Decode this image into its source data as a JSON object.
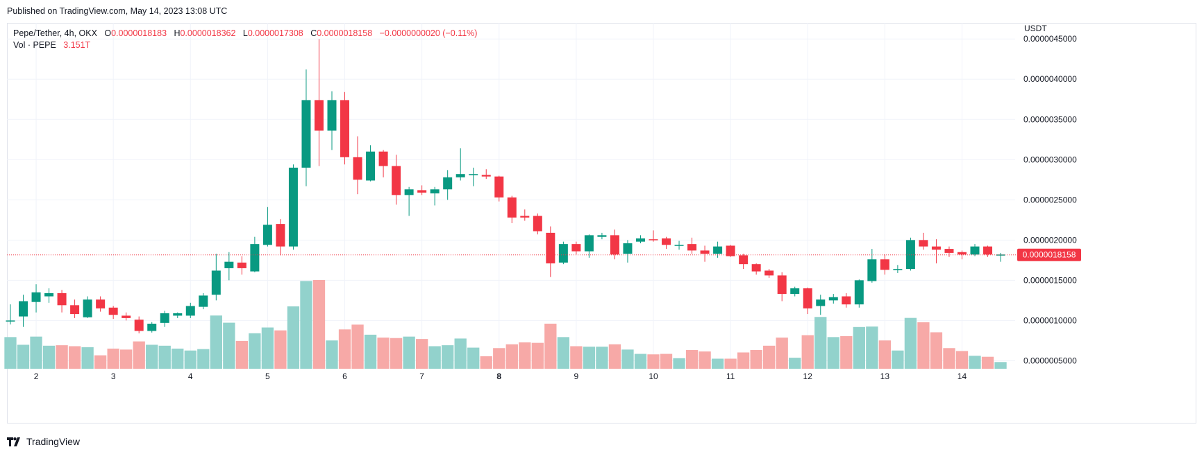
{
  "published": "Published on TradingView.com, May 14, 2023 13:08 UTC",
  "legend": {
    "symbol": "Pepe/Tether, 4h, OKX",
    "o_label": "O",
    "o_value": "0.0000018183",
    "h_label": "H",
    "h_value": "0.0000018362",
    "l_label": "L",
    "l_value": "0.0000017308",
    "c_label": "C",
    "c_value": "0.0000018158",
    "change": "−0.0000000020 (−0.11%)",
    "vol_label": "Vol · PEPE",
    "vol_value": "3.151T"
  },
  "brand": "TradingView",
  "colors": {
    "up": "#089981",
    "down": "#f23645",
    "vol_up": "#92d2cc",
    "vol_down": "#f7a9a7",
    "grid": "#f0f3fa",
    "price_tag": "#f23645"
  },
  "chart_data": {
    "type": "candlestick",
    "currency_label": "USDT",
    "y_ticks": [
      "0.0000045000",
      "0.0000040000",
      "0.0000035000",
      "0.0000030000",
      "0.0000025000",
      "0.0000020000",
      "0.0000015000",
      "0.0000010000",
      "0.0000005000"
    ],
    "y_tick_values": [
      4.5e-06,
      4e-06,
      3.5e-06,
      3e-06,
      2.5e-06,
      2e-06,
      1.5e-06,
      1e-06,
      5e-07
    ],
    "ylim": [
      4e-07,
      4.7e-06
    ],
    "x_labels": [
      {
        "label": "2",
        "index": 2
      },
      {
        "label": "3",
        "index": 8
      },
      {
        "label": "4",
        "index": 14
      },
      {
        "label": "5",
        "index": 20
      },
      {
        "label": "6",
        "index": 26
      },
      {
        "label": "7",
        "index": 32
      },
      {
        "label": "8",
        "index": 38,
        "bold": true
      },
      {
        "label": "9",
        "index": 44
      },
      {
        "label": "10",
        "index": 50
      },
      {
        "label": "11",
        "index": 56
      },
      {
        "label": "12",
        "index": 62
      },
      {
        "label": "13",
        "index": 68
      },
      {
        "label": "14",
        "index": 74
      }
    ],
    "last_price": 1.8158e-06,
    "last_price_label": "0.0000018158",
    "candles": [
      [
        1e-06,
        1.2e-06,
        9.5e-07,
        1e-06
      ],
      [
        1.05e-06,
        1.32e-06,
        9.2e-07,
        1.24e-06
      ],
      [
        1.23e-06,
        1.45e-06,
        1.1e-06,
        1.35e-06
      ],
      [
        1.3e-06,
        1.4e-06,
        1.22e-06,
        1.34e-06
      ],
      [
        1.34e-06,
        1.38e-06,
        1.1e-06,
        1.19e-06
      ],
      [
        1.19e-06,
        1.26e-06,
        1.03e-06,
        1.08e-06
      ],
      [
        1.04e-06,
        1.3e-06,
        1.03e-06,
        1.26e-06
      ],
      [
        1.26e-06,
        1.3e-06,
        1.11e-06,
        1.15e-06
      ],
      [
        1.16e-06,
        1.18e-06,
        1.02e-06,
        1.07e-06
      ],
      [
        1.06e-06,
        1.1e-06,
        1e-06,
        1.03e-06
      ],
      [
        1.01e-06,
        1.05e-06,
        8.4e-07,
        8.7e-07
      ],
      [
        8.7e-07,
        9.8e-07,
        8.5e-07,
        9.6e-07
      ],
      [
        9.7e-07,
        1.12e-06,
        9.2e-07,
        1.09e-06
      ],
      [
        1.06e-06,
        1.1e-06,
        1.03e-06,
        1.09e-06
      ],
      [
        1.06e-06,
        1.22e-06,
        1.03e-06,
        1.18e-06
      ],
      [
        1.17e-06,
        1.34e-06,
        1.14e-06,
        1.31e-06
      ],
      [
        1.32e-06,
        1.83e-06,
        1.25e-06,
        1.62e-06
      ],
      [
        1.65e-06,
        1.85e-06,
        1.5e-06,
        1.73e-06
      ],
      [
        1.72e-06,
        1.8e-06,
        1.57e-06,
        1.65e-06
      ],
      [
        1.61e-06,
        2.04e-06,
        1.6e-06,
        1.95e-06
      ],
      [
        1.94e-06,
        2.41e-06,
        1.92e-06,
        2.19e-06
      ],
      [
        2.2e-06,
        2.26e-06,
        1.81e-06,
        1.92e-06
      ],
      [
        1.92e-06,
        2.94e-06,
        1.88e-06,
        2.9e-06
      ],
      [
        2.9e-06,
        4.12e-06,
        2.67e-06,
        3.74e-06
      ],
      [
        3.74e-06,
        4.5e-06,
        2.92e-06,
        3.36e-06
      ],
      [
        3.36e-06,
        3.85e-06,
        3.12e-06,
        3.74e-06
      ],
      [
        3.74e-06,
        3.84e-06,
        2.94e-06,
        3.03e-06
      ],
      [
        3.03e-06,
        3.29e-06,
        2.57e-06,
        2.75e-06
      ],
      [
        2.74e-06,
        3.18e-06,
        2.73e-06,
        3.1e-06
      ],
      [
        3.1e-06,
        3.12e-06,
        2.78e-06,
        2.92e-06
      ],
      [
        2.92e-06,
        3.06e-06,
        2.44e-06,
        2.56e-06
      ],
      [
        2.56e-06,
        2.66e-06,
        2.3e-06,
        2.63e-06
      ],
      [
        2.62e-06,
        2.68e-06,
        2.56e-06,
        2.59e-06
      ],
      [
        2.58e-06,
        2.66e-06,
        2.43e-06,
        2.63e-06
      ],
      [
        2.63e-06,
        2.87e-06,
        2.5e-06,
        2.78e-06
      ],
      [
        2.78e-06,
        3.14e-06,
        2.74e-06,
        2.82e-06
      ],
      [
        2.81e-06,
        2.9e-06,
        2.67e-06,
        2.82e-06
      ],
      [
        2.81e-06,
        2.88e-06,
        2.76e-06,
        2.79e-06
      ],
      [
        2.79e-06,
        2.8e-06,
        2.48e-06,
        2.53e-06
      ],
      [
        2.53e-06,
        2.55e-06,
        2.21e-06,
        2.28e-06
      ],
      [
        2.3e-06,
        2.38e-06,
        2.24e-06,
        2.28e-06
      ],
      [
        2.3e-06,
        2.33e-06,
        2.07e-06,
        2.11e-06
      ],
      [
        2.09e-06,
        2.17e-06,
        1.54e-06,
        1.71e-06
      ],
      [
        1.72e-06,
        1.98e-06,
        1.7e-06,
        1.95e-06
      ],
      [
        1.95e-06,
        1.98e-06,
        1.82e-06,
        1.86e-06
      ],
      [
        1.86e-06,
        2.07e-06,
        1.78e-06,
        2.06e-06
      ],
      [
        2.04e-06,
        2.09e-06,
        2.01e-06,
        2.06e-06
      ],
      [
        2.06e-06,
        2.13e-06,
        1.76e-06,
        1.82e-06
      ],
      [
        1.83e-06,
        2e-06,
        1.72e-06,
        1.96e-06
      ],
      [
        1.98e-06,
        2.06e-06,
        1.96e-06,
        2.02e-06
      ],
      [
        2.01e-06,
        2.12e-06,
        1.98e-06,
        2e-06
      ],
      [
        2.02e-06,
        2.04e-06,
        1.89e-06,
        1.94e-06
      ],
      [
        1.93e-06,
        1.99e-06,
        1.88e-06,
        1.94e-06
      ],
      [
        1.95e-06,
        2.03e-06,
        1.83e-06,
        1.87e-06
      ],
      [
        1.87e-06,
        1.93e-06,
        1.73e-06,
        1.83e-06
      ],
      [
        1.83e-06,
        1.98e-06,
        1.78e-06,
        1.92e-06
      ],
      [
        1.93e-06,
        1.94e-06,
        1.79e-06,
        1.8e-06
      ],
      [
        1.81e-06,
        1.83e-06,
        1.64e-06,
        1.7e-06
      ],
      [
        1.7e-06,
        1.71e-06,
        1.57e-06,
        1.61e-06
      ],
      [
        1.62e-06,
        1.64e-06,
        1.53e-06,
        1.56e-06
      ],
      [
        1.56e-06,
        1.6e-06,
        1.24e-06,
        1.33e-06
      ],
      [
        1.33e-06,
        1.42e-06,
        1.3e-06,
        1.4e-06
      ],
      [
        1.4e-06,
        1.41e-06,
        1.08e-06,
        1.15e-06
      ],
      [
        1.18e-06,
        1.32e-06,
        1.07e-06,
        1.26e-06
      ],
      [
        1.25e-06,
        1.33e-06,
        1.21e-06,
        1.29e-06
      ],
      [
        1.3e-06,
        1.34e-06,
        1.16e-06,
        1.2e-06
      ],
      [
        1.2e-06,
        1.51e-06,
        1.16e-06,
        1.5e-06
      ],
      [
        1.49e-06,
        1.89e-06,
        1.47e-06,
        1.76e-06
      ],
      [
        1.76e-06,
        1.82e-06,
        1.57e-06,
        1.63e-06
      ],
      [
        1.64e-06,
        1.69e-06,
        1.59e-06,
        1.64e-06
      ],
      [
        1.64e-06,
        2.03e-06,
        1.62e-06,
        2e-06
      ],
      [
        2e-06,
        2.09e-06,
        1.88e-06,
        1.92e-06
      ],
      [
        1.92e-06,
        2.01e-06,
        1.71e-06,
        1.88e-06
      ],
      [
        1.89e-06,
        1.92e-06,
        1.79e-06,
        1.84e-06
      ],
      [
        1.85e-06,
        1.87e-06,
        1.76e-06,
        1.82e-06
      ],
      [
        1.82e-06,
        1.95e-06,
        1.8e-06,
        1.92e-06
      ],
      [
        1.92e-06,
        1.93e-06,
        1.79e-06,
        1.82e-06
      ],
      [
        1.82e-06,
        1.84e-06,
        1.73e-06,
        1.82e-06
      ]
    ],
    "volume": [
      66,
      50,
      67,
      48,
      49,
      47,
      45,
      28,
      42,
      40,
      57,
      50,
      48,
      42,
      38,
      41,
      111,
      96,
      58,
      74,
      86,
      80,
      130,
      183,
      185,
      59,
      82,
      92,
      71,
      65,
      64,
      67,
      62,
      47,
      49,
      63,
      44,
      26,
      43,
      51,
      55,
      54,
      94,
      66,
      47,
      46,
      46,
      51,
      40,
      31,
      30,
      31,
      22,
      39,
      36,
      21,
      21,
      34,
      39,
      48,
      65,
      23,
      70,
      108,
      66,
      68,
      87,
      88,
      59,
      38,
      106,
      97,
      76,
      43,
      37,
      27,
      25,
      14
    ]
  }
}
